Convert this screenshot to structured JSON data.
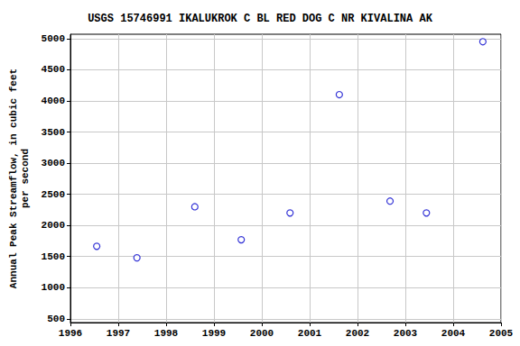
{
  "chart_data": {
    "type": "scatter",
    "title": "USGS 15746991 IKALUKROK C BL RED DOG C NR KIVALINA AK",
    "y_label": "Annual Peak Streamflow, in cubic feet\nper second",
    "x": [
      1996.55,
      1997.39,
      1998.6,
      1999.57,
      2000.59,
      2001.62,
      2002.68,
      2003.44,
      2004.62
    ],
    "values": [
      1665,
      1480,
      2300,
      1770,
      2200,
      4100,
      2390,
      2200,
      4950
    ],
    "color": "#0000cc",
    "marker": "open_circle",
    "xlim": [
      1996,
      2005
    ],
    "xticks": [
      1996,
      1997,
      1998,
      1999,
      2000,
      2001,
      2002,
      2003,
      2004,
      2005
    ],
    "ylim": [
      440,
      5070
    ],
    "yticks": [
      500,
      1000,
      1500,
      2000,
      2500,
      3000,
      3500,
      4000,
      4500,
      5000
    ],
    "grid": true
  }
}
